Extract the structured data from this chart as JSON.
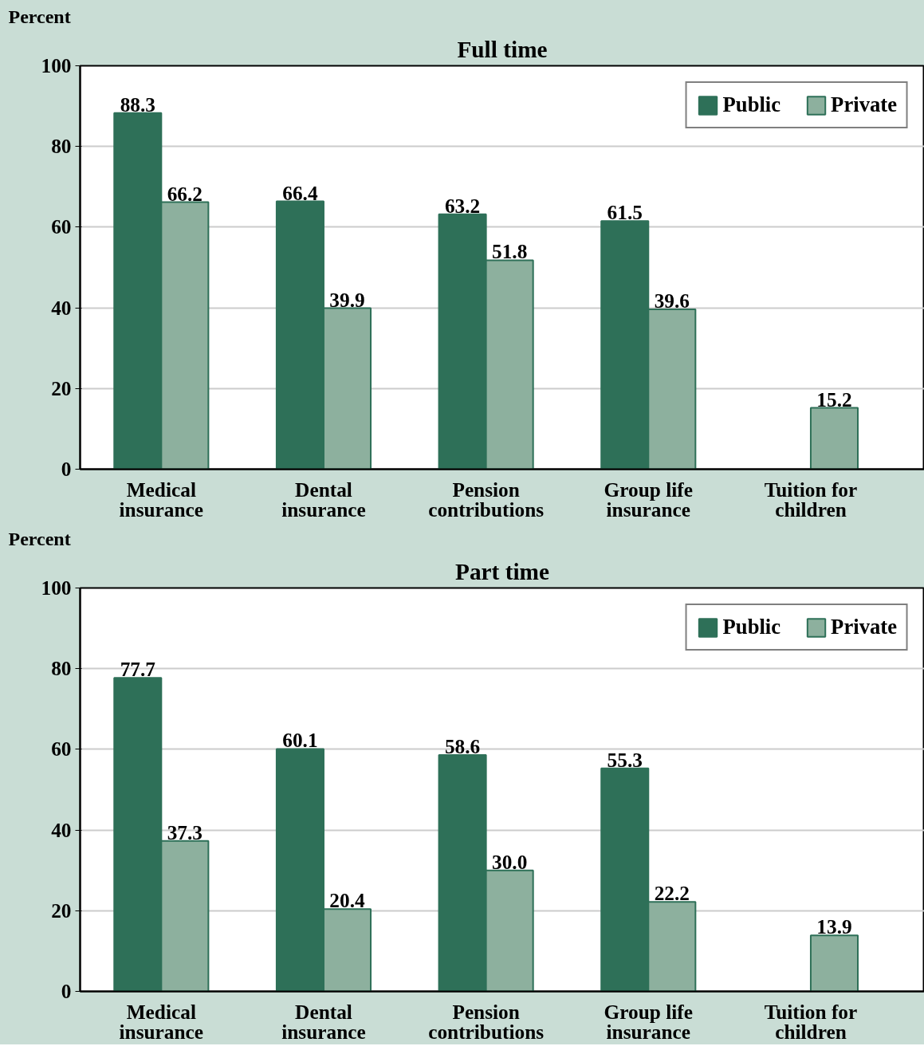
{
  "chart_data": [
    {
      "type": "bar",
      "title": "Full time",
      "ylabel": "Percent",
      "categories": [
        "Medical insurance",
        "Dental insurance",
        "Pension contributions",
        "Group life insurance",
        "Tuition for children"
      ],
      "series": [
        {
          "name": "Public",
          "color": "#2e7058",
          "values": [
            88.3,
            66.4,
            63.2,
            61.5,
            null
          ],
          "value_labels": [
            "88.3",
            "66.4",
            "63.2",
            "61.5",
            null
          ]
        },
        {
          "name": "Private",
          "color": "#8db09e",
          "values": [
            66.2,
            39.9,
            51.8,
            39.6,
            15.2
          ],
          "value_labels": [
            "66.2",
            "39.9",
            "51.8",
            "39.6",
            "15.2"
          ]
        }
      ],
      "ylim": [
        0,
        100
      ],
      "yticks": [
        0,
        20,
        40,
        60,
        80,
        100
      ],
      "grid": "y",
      "legend": "top right"
    },
    {
      "type": "bar",
      "title": "Part time",
      "ylabel": "Percent",
      "categories": [
        "Medical insurance",
        "Dental insurance",
        "Pension contributions",
        "Group life insurance",
        "Tuition for children"
      ],
      "series": [
        {
          "name": "Public",
          "color": "#2e7058",
          "values": [
            77.7,
            60.1,
            58.6,
            55.3,
            null
          ],
          "value_labels": [
            "77.7",
            "60.1",
            "58.6",
            "55.3",
            null
          ]
        },
        {
          "name": "Private",
          "color": "#8db09e",
          "values": [
            37.3,
            20.4,
            30.0,
            22.2,
            13.9
          ],
          "value_labels": [
            "37.3",
            "20.4",
            "30.0",
            "22.2",
            "13.9"
          ]
        }
      ],
      "ylim": [
        0,
        100
      ],
      "yticks": [
        0,
        20,
        40,
        60,
        80,
        100
      ],
      "grid": "y",
      "legend": "top right"
    }
  ]
}
